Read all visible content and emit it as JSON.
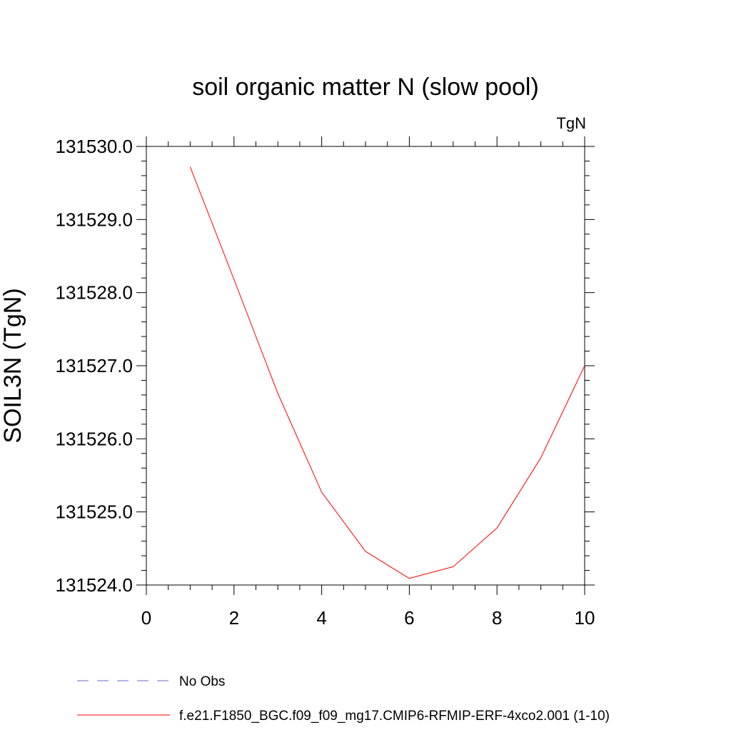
{
  "chart_data": {
    "type": "line",
    "title": "soil organic matter N (slow pool)",
    "units_label": "TgN",
    "ylabel": "SOIL3N  (TgN)",
    "xlabel": "",
    "xlim": [
      0,
      10
    ],
    "ylim": [
      131524.0,
      131530.0
    ],
    "x_ticks": [
      0,
      2,
      4,
      6,
      8,
      10
    ],
    "x_tick_labels": [
      "0",
      "2",
      "4",
      "6",
      "8",
      "10"
    ],
    "y_ticks": [
      131524.0,
      131525.0,
      131526.0,
      131527.0,
      131528.0,
      131529.0,
      131530.0
    ],
    "y_tick_labels": [
      "131524.0",
      "131525.0",
      "131526.0",
      "131527.0",
      "131528.0",
      "131529.0",
      "131530.0"
    ],
    "series": [
      {
        "name": "f.e21.F1850_BGC.f09_f09_mg17.CMIP6-RFMIP-ERF-4xco2.001 (1-10)",
        "color": "#ff0000",
        "dash": "solid",
        "x": [
          1,
          2,
          3,
          4,
          5,
          6,
          7,
          8,
          9,
          10
        ],
        "values": [
          131529.72,
          131528.18,
          131526.62,
          131525.27,
          131524.46,
          131524.09,
          131524.25,
          131524.78,
          131525.74,
          131527.0
        ]
      }
    ],
    "legend": [
      {
        "label": "No Obs",
        "color": "#6666cc",
        "dash": "dashed"
      },
      {
        "label": "f.e21.F1850_BGC.f09_f09_mg17.CMIP6-RFMIP-ERF-4xco2.001 (1-10)",
        "color": "#ff0000",
        "dash": "solid"
      }
    ]
  }
}
